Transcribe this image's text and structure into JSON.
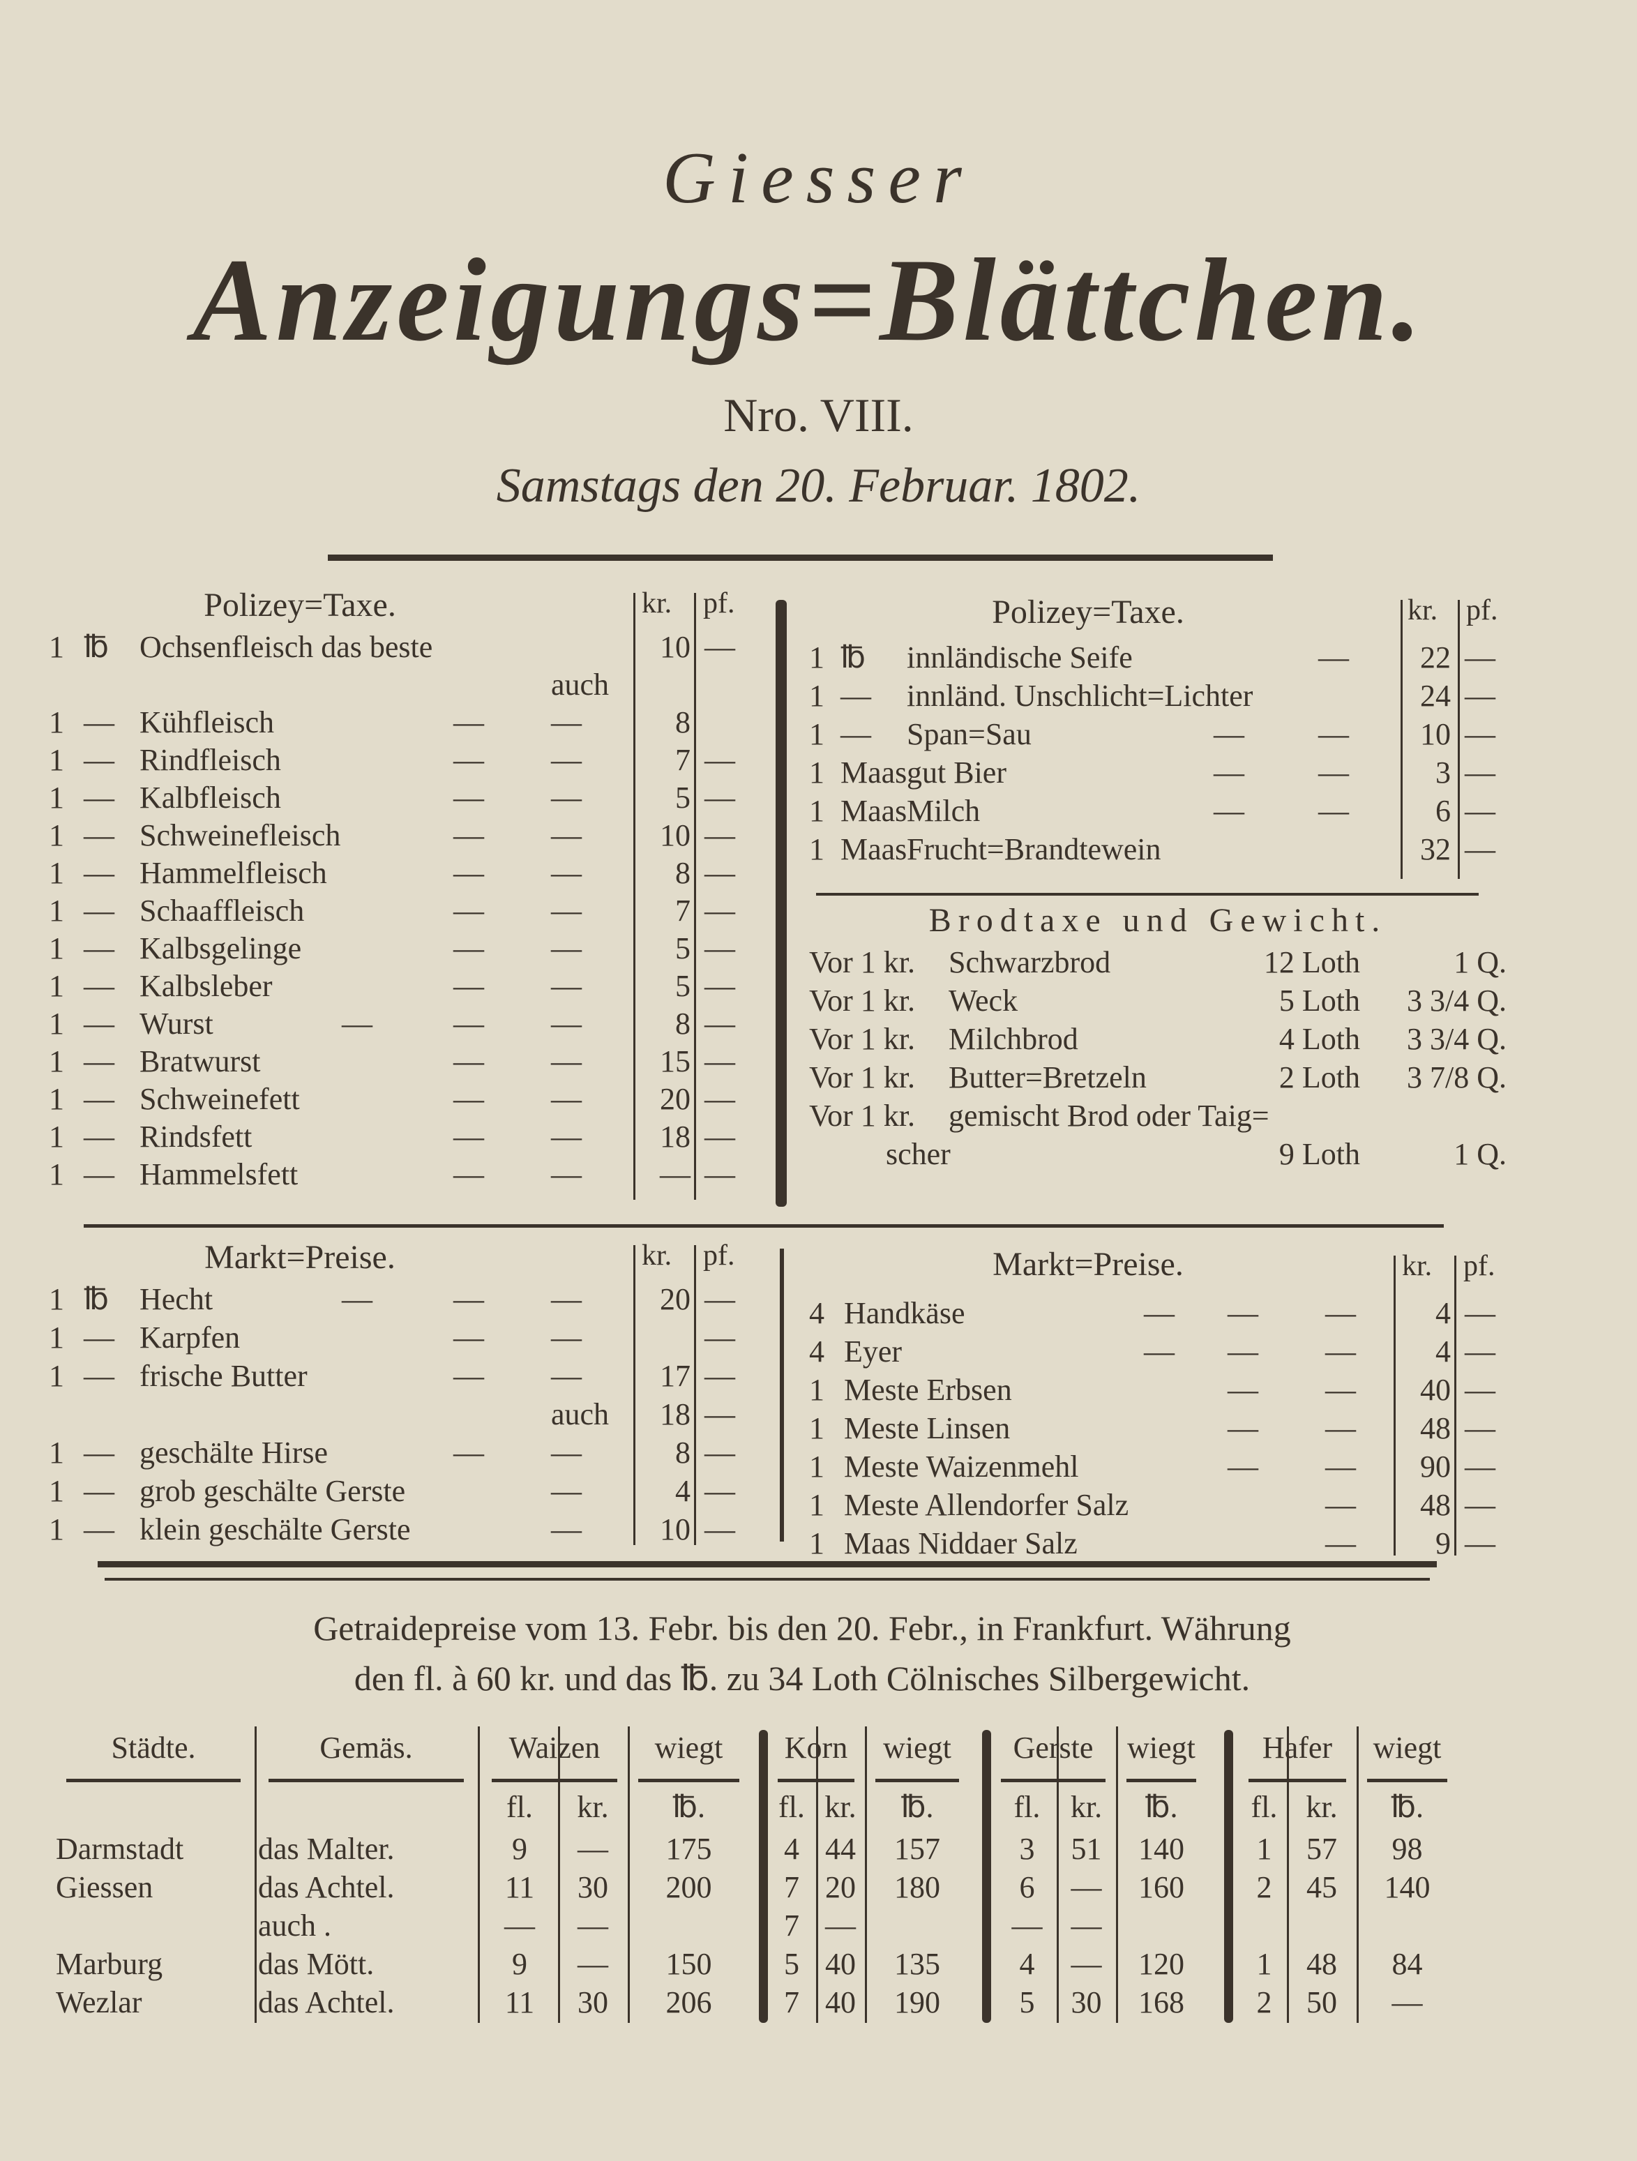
{
  "masthead": {
    "title_small": "Giesser",
    "title_big": "Anzeigungs=Blättchen.",
    "issue": "Nro. VIII.",
    "date": "Samstags den 20. Februar. 1802."
  },
  "polizey_left": {
    "header": "Polizey=Taxe.",
    "kr": "kr.",
    "pf": "pf.",
    "rows": [
      {
        "q": "1",
        "u": "℔",
        "item": "Ochsenfleisch das beste",
        "d0": "",
        "d1": "",
        "d2": "",
        "kr": "10",
        "pf": "—"
      },
      {
        "q": "",
        "u": "",
        "item": "",
        "d0": "",
        "d1": "",
        "d2": "auch",
        "kr": "",
        "pf": ""
      },
      {
        "q": "1",
        "u": "—",
        "item": "Kühfleisch",
        "d0": "",
        "d1": "—",
        "d2": "—",
        "kr": "8",
        "pf": ""
      },
      {
        "q": "1",
        "u": "—",
        "item": "Rindfleisch",
        "d0": "",
        "d1": "—",
        "d2": "—",
        "kr": "7",
        "pf": "—"
      },
      {
        "q": "1",
        "u": "—",
        "item": "Kalbfleisch",
        "d0": "",
        "d1": "—",
        "d2": "—",
        "kr": "5",
        "pf": "—"
      },
      {
        "q": "1",
        "u": "—",
        "item": "Schweinefleisch",
        "d0": "",
        "d1": "—",
        "d2": "—",
        "kr": "10",
        "pf": "—"
      },
      {
        "q": "1",
        "u": "—",
        "item": "Hammelfleisch",
        "d0": "",
        "d1": "—",
        "d2": "—",
        "kr": "8",
        "pf": "—"
      },
      {
        "q": "1",
        "u": "—",
        "item": "Schaaffleisch",
        "d0": "",
        "d1": "—",
        "d2": "—",
        "kr": "7",
        "pf": "—"
      },
      {
        "q": "1",
        "u": "—",
        "item": "Kalbsgelinge",
        "d0": "",
        "d1": "—",
        "d2": "—",
        "kr": "5",
        "pf": "—"
      },
      {
        "q": "1",
        "u": "—",
        "item": "Kalbsleber",
        "d0": "",
        "d1": "—",
        "d2": "—",
        "kr": "5",
        "pf": "—"
      },
      {
        "q": "1",
        "u": "—",
        "item": "Wurst",
        "d0": "—",
        "d1": "—",
        "d2": "—",
        "kr": "8",
        "pf": "—"
      },
      {
        "q": "1",
        "u": "—",
        "item": "Bratwurst",
        "d0": "",
        "d1": "—",
        "d2": "—",
        "kr": "15",
        "pf": "—"
      },
      {
        "q": "1",
        "u": "—",
        "item": "Schweinefett",
        "d0": "",
        "d1": "—",
        "d2": "—",
        "kr": "20",
        "pf": "—"
      },
      {
        "q": "1",
        "u": "—",
        "item": "Rindsfett",
        "d0": "",
        "d1": "—",
        "d2": "—",
        "kr": "18",
        "pf": "—"
      },
      {
        "q": "1",
        "u": "—",
        "item": "Hammelsfett",
        "d0": "",
        "d1": "—",
        "d2": "—",
        "kr": "—",
        "pf": "—"
      }
    ]
  },
  "polizey_right": {
    "header": "Polizey=Taxe.",
    "kr": "kr.",
    "pf": "pf.",
    "rows": [
      {
        "q": "1",
        "u": "℔",
        "item": "innländische Seife",
        "d0": "",
        "d1": "",
        "d2": "—",
        "kr": "22",
        "pf": "—"
      },
      {
        "q": "1",
        "u": "—",
        "item": "innländ. Unschlicht=Lichter",
        "d0": "",
        "d1": "",
        "d2": "",
        "kr": "24",
        "pf": "—"
      },
      {
        "q": "1",
        "u": "—",
        "item": "Span=Sau",
        "d0": "",
        "d1": "—",
        "d2": "—",
        "kr": "10",
        "pf": "—"
      },
      {
        "q": "1",
        "u": "Maas",
        "item": "gut Bier",
        "d0": "",
        "d1": "—",
        "d2": "—",
        "kr": "3",
        "pf": "—"
      },
      {
        "q": "1",
        "u": "Maas",
        "item": "Milch",
        "d0": "",
        "d1": "—",
        "d2": "—",
        "kr": "6",
        "pf": "—"
      },
      {
        "q": "1",
        "u": "Maas",
        "item": "Frucht=Brandtewein",
        "d0": "",
        "d1": "",
        "d2": "",
        "kr": "32",
        "pf": "—"
      }
    ]
  },
  "brodtaxe": {
    "header": "Brodtaxe und Gewicht.",
    "rows": [
      {
        "prefix": "Vor 1 kr.",
        "item": "Schwarzbrod",
        "loth": "12 Loth",
        "q": "1 Q."
      },
      {
        "prefix": "Vor 1 kr.",
        "item": "Weck",
        "loth": "5 Loth",
        "q": "3 3/4 Q."
      },
      {
        "prefix": "Vor 1 kr.",
        "item": "Milchbrod",
        "loth": "4 Loth",
        "q": "3 3/4 Q."
      },
      {
        "prefix": "Vor 1 kr.",
        "item": "Butter=Bretzeln",
        "loth": "2 Loth",
        "q": "3 7/8 Q."
      },
      {
        "prefix": "Vor 1 kr.",
        "item": "gemischt Brod oder Taig=",
        "loth": "",
        "q": ""
      },
      {
        "prefix": "",
        "item": "scher",
        "loth": "9 Loth",
        "q": "1 Q."
      }
    ]
  },
  "markt_left": {
    "header": "Markt=Preise.",
    "kr": "kr.",
    "pf": "pf.",
    "rows": [
      {
        "q": "1",
        "u": "℔",
        "item": "Hecht",
        "d0": "—",
        "d1": "—",
        "d2": "—",
        "kr": "20",
        "pf": "—"
      },
      {
        "q": "1",
        "u": "—",
        "item": "Karpfen",
        "d0": "",
        "d1": "—",
        "d2": "—",
        "kr": "",
        "pf": "—"
      },
      {
        "q": "1",
        "u": "—",
        "item": "frische Butter",
        "d0": "",
        "d1": "—",
        "d2": "—",
        "kr": "17",
        "pf": "—"
      },
      {
        "q": "",
        "u": "",
        "item": "",
        "d0": "",
        "d1": "",
        "d2": "auch",
        "kr": "18",
        "pf": "—"
      },
      {
        "q": "1",
        "u": "—",
        "item": "geschälte Hirse",
        "d0": "",
        "d1": "—",
        "d2": "—",
        "kr": "8",
        "pf": "—"
      },
      {
        "q": "1",
        "u": "—",
        "item": "grob geschälte Gerste",
        "d0": "",
        "d1": "",
        "d2": "—",
        "kr": "4",
        "pf": "—"
      },
      {
        "q": "1",
        "u": "—",
        "item": "klein geschälte Gerste",
        "d0": "",
        "d1": "",
        "d2": "—",
        "kr": "10",
        "pf": "—"
      }
    ]
  },
  "markt_right": {
    "header": "Markt=Preise.",
    "kr": "kr.",
    "pf": "pf.",
    "rows": [
      {
        "q": "4",
        "u": "",
        "item": "Handkäse",
        "d0": "—",
        "d1": "—",
        "d2": "—",
        "kr": "4",
        "pf": "—"
      },
      {
        "q": "4",
        "u": "",
        "item": "Eyer",
        "d0": "—",
        "d1": "—",
        "d2": "—",
        "kr": "4",
        "pf": "—"
      },
      {
        "q": "1",
        "u": "",
        "item": "Meste Erbsen",
        "d0": "",
        "d1": "—",
        "d2": "—",
        "kr": "40",
        "pf": "—"
      },
      {
        "q": "1",
        "u": "",
        "item": "Meste Linsen",
        "d0": "",
        "d1": "—",
        "d2": "—",
        "kr": "48",
        "pf": "—"
      },
      {
        "q": "1",
        "u": "",
        "item": "Meste Waizenmehl",
        "d0": "",
        "d1": "—",
        "d2": "—",
        "kr": "90",
        "pf": "—"
      },
      {
        "q": "1",
        "u": "",
        "item": "Meste Allendorfer Salz",
        "d0": "",
        "d1": "",
        "d2": "—",
        "kr": "48",
        "pf": "—"
      },
      {
        "q": "1",
        "u": "",
        "item": "Maas Niddaer Salz",
        "d0": "",
        "d1": "",
        "d2": "—",
        "kr": "9",
        "pf": "—"
      }
    ]
  },
  "getraide": {
    "line1": "Getraidepreise vom 13. Febr. bis den 20. Febr., in Frankfurt. Währung",
    "line2": "den fl. à 60 kr. und das ℔. zu 34 Loth Cölnisches Silbergewicht.",
    "headers": [
      "Städte.",
      "Gemäs.",
      "Waizen",
      "wiegt",
      "Korn",
      "wiegt",
      "Gerste",
      "wiegt",
      "Hafer",
      "wiegt"
    ],
    "subheaders": [
      "",
      "",
      "fl.",
      "kr.",
      "℔.",
      "fl.",
      "kr.",
      "℔.",
      "fl.",
      "kr.",
      "℔.",
      "fl.",
      "kr.",
      "℔."
    ],
    "rows": [
      [
        "Darmstadt",
        "das Malter.",
        "9",
        "—",
        "175",
        "4",
        "44",
        "157",
        "3",
        "51",
        "140",
        "1",
        "57",
        "98"
      ],
      [
        "Giessen",
        "das Achtel.",
        "11",
        "30",
        "200",
        "7",
        "20",
        "180",
        "6",
        "—",
        "160",
        "2",
        "45",
        "140"
      ],
      [
        "",
        "auch .",
        "—",
        "—",
        "",
        "7",
        "—",
        "",
        "—",
        "—",
        "",
        "",
        "",
        ""
      ],
      [
        "Marburg",
        "das Mött.",
        "9",
        "—",
        "150",
        "5",
        "40",
        "135",
        "4",
        "—",
        "120",
        "1",
        "48",
        "84"
      ],
      [
        "Wezlar",
        "das Achtel.",
        "11",
        "30",
        "206",
        "7",
        "40",
        "190",
        "5",
        "30",
        "168",
        "2",
        "50",
        "—"
      ]
    ]
  }
}
